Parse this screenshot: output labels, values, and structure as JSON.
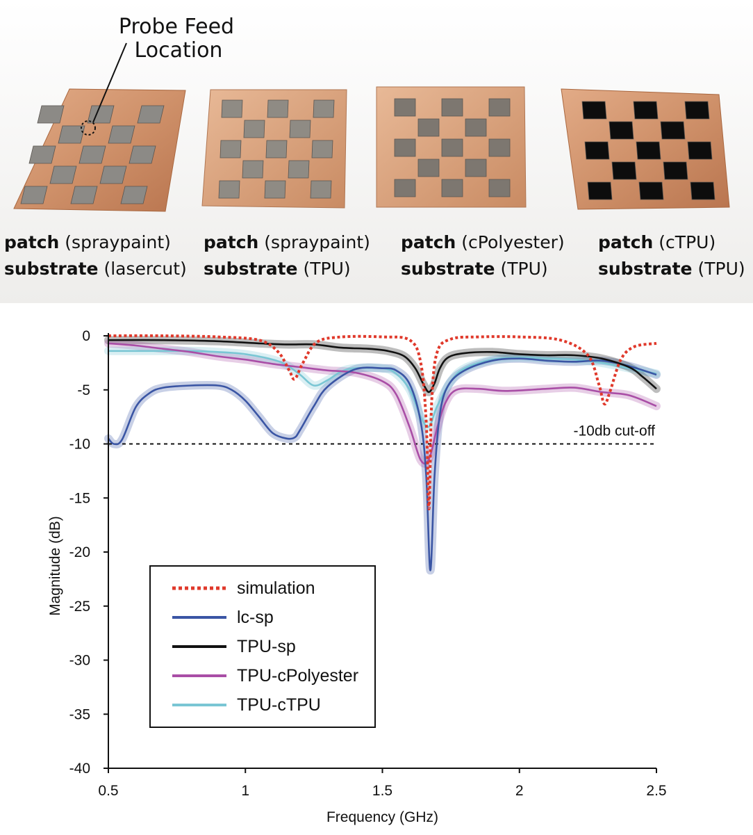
{
  "photo": {
    "annotation": {
      "line1": "Probe Feed",
      "line2": "Location"
    },
    "samples": [
      {
        "patch_label": "patch",
        "patch_material": "(spraypaint)",
        "substrate_label": "substrate",
        "substrate_material": "(lasercut)",
        "patch_color": "#8c8a86"
      },
      {
        "patch_label": "patch",
        "patch_material": "(spraypaint)",
        "substrate_label": "substrate",
        "substrate_material": "(TPU)",
        "patch_color": "#8f8b84"
      },
      {
        "patch_label": "patch",
        "patch_material": "(cPolyester)",
        "substrate_label": "substrate",
        "substrate_material": "(TPU)",
        "patch_color": "#7d7770"
      },
      {
        "patch_label": "patch",
        "patch_material": "(cTPU)",
        "substrate_label": "substrate",
        "substrate_material": "(TPU)",
        "patch_color": "#0d0d0d"
      }
    ],
    "copper_color": "#d69a76"
  },
  "chart_data": {
    "type": "line",
    "xlabel": "Frequency (GHz)",
    "ylabel": "Magnitude (dB)",
    "xlim": [
      0.5,
      2.5
    ],
    "ylim": [
      -40,
      0
    ],
    "xticks": [
      "0.5",
      "1",
      "1.5",
      "2",
      "2.5"
    ],
    "xtick_values": [
      0.5,
      1,
      1.5,
      2,
      2.5
    ],
    "yticks": [
      "0",
      "-5",
      "-10",
      "-15",
      "-20",
      "-25",
      "-30",
      "-35",
      "-40"
    ],
    "ytick_values": [
      0,
      -5,
      -10,
      -15,
      -20,
      -25,
      -30,
      -35,
      -40
    ],
    "cutoff": {
      "value": -10,
      "label": "-10db cut-off"
    },
    "legend_position": "bottom-left",
    "series": [
      {
        "name": "simulation",
        "color": "#e0392b",
        "style": "dotted",
        "x": [
          0.5,
          0.7,
          0.9,
          1.05,
          1.12,
          1.16,
          1.18,
          1.21,
          1.26,
          1.35,
          1.5,
          1.6,
          1.64,
          1.66,
          1.67,
          1.68,
          1.7,
          1.75,
          1.85,
          2.0,
          2.15,
          2.25,
          2.29,
          2.31,
          2.33,
          2.37,
          2.42,
          2.5
        ],
        "values": [
          0.0,
          0.0,
          -0.1,
          -0.4,
          -1.5,
          -3.2,
          -4.0,
          -2.5,
          -0.6,
          -0.1,
          -0.1,
          -0.4,
          -2.5,
          -8.0,
          -16.0,
          -6.0,
          -1.5,
          -0.3,
          -0.1,
          -0.1,
          -0.4,
          -1.8,
          -4.5,
          -6.3,
          -5.2,
          -2.2,
          -1.0,
          -0.7
        ]
      },
      {
        "name": "lc-sp",
        "color": "#3a55a4",
        "style": "solid",
        "x": [
          0.5,
          0.52,
          0.55,
          0.6,
          0.65,
          0.7,
          0.8,
          0.9,
          0.95,
          1.0,
          1.05,
          1.1,
          1.15,
          1.18,
          1.2,
          1.25,
          1.3,
          1.4,
          1.5,
          1.55,
          1.6,
          1.64,
          1.66,
          1.675,
          1.69,
          1.71,
          1.74,
          1.8,
          1.9,
          2.0,
          2.1,
          2.2,
          2.3,
          2.4,
          2.5
        ],
        "values": [
          -9.5,
          -10.0,
          -9.6,
          -6.6,
          -5.3,
          -4.8,
          -4.6,
          -4.6,
          -5.0,
          -6.0,
          -7.5,
          -9.0,
          -9.5,
          -9.4,
          -8.7,
          -6.5,
          -4.7,
          -3.1,
          -3.0,
          -3.2,
          -4.5,
          -8.0,
          -13.0,
          -21.7,
          -13.0,
          -7.2,
          -4.6,
          -3.2,
          -2.3,
          -2.1,
          -2.3,
          -2.4,
          -2.3,
          -2.8,
          -3.6
        ]
      },
      {
        "name": "TPU-sp",
        "color": "#111111",
        "style": "solid",
        "x": [
          0.5,
          0.7,
          0.9,
          1.05,
          1.15,
          1.25,
          1.35,
          1.45,
          1.52,
          1.58,
          1.62,
          1.65,
          1.67,
          1.69,
          1.71,
          1.74,
          1.8,
          1.9,
          2.0,
          2.1,
          2.2,
          2.3,
          2.4,
          2.45,
          2.5
        ],
        "values": [
          -0.4,
          -0.4,
          -0.5,
          -0.7,
          -0.8,
          -0.8,
          -1.1,
          -1.2,
          -1.4,
          -1.9,
          -3.0,
          -4.5,
          -5.2,
          -4.4,
          -3.0,
          -2.0,
          -1.6,
          -1.5,
          -1.7,
          -1.8,
          -1.8,
          -2.1,
          -2.9,
          -3.8,
          -4.9
        ]
      },
      {
        "name": "TPU-cPolyester",
        "color": "#a94ea6",
        "style": "solid",
        "x": [
          0.5,
          0.6,
          0.7,
          0.8,
          0.9,
          1.0,
          1.1,
          1.2,
          1.3,
          1.4,
          1.5,
          1.55,
          1.6,
          1.64,
          1.67,
          1.7,
          1.73,
          1.77,
          1.85,
          1.95,
          2.1,
          2.2,
          2.3,
          2.4,
          2.5
        ],
        "values": [
          -0.7,
          -0.9,
          -1.2,
          -1.5,
          -1.9,
          -2.2,
          -2.6,
          -2.9,
          -3.2,
          -3.4,
          -4.2,
          -5.4,
          -8.5,
          -11.5,
          -11.4,
          -8.5,
          -6.2,
          -5.0,
          -4.9,
          -5.1,
          -4.9,
          -4.8,
          -5.2,
          -5.5,
          -6.5
        ]
      },
      {
        "name": "TPU-cTPU",
        "color": "#7ac6d4",
        "style": "solid",
        "x": [
          0.5,
          0.6,
          0.7,
          0.8,
          0.9,
          1.0,
          1.1,
          1.15,
          1.2,
          1.25,
          1.3,
          1.35,
          1.4,
          1.5,
          1.55,
          1.6,
          1.64,
          1.67,
          1.7,
          1.75,
          1.8,
          1.9,
          2.0,
          2.1,
          2.2,
          2.3,
          2.4,
          2.5
        ],
        "values": [
          -1.4,
          -1.4,
          -1.4,
          -1.4,
          -1.5,
          -1.7,
          -2.2,
          -2.7,
          -3.6,
          -4.6,
          -4.1,
          -3.3,
          -3.0,
          -3.0,
          -3.5,
          -5.0,
          -7.5,
          -8.4,
          -6.5,
          -4.2,
          -3.0,
          -2.2,
          -2.0,
          -2.1,
          -2.2,
          -2.5,
          -3.0,
          -3.5
        ]
      }
    ]
  }
}
